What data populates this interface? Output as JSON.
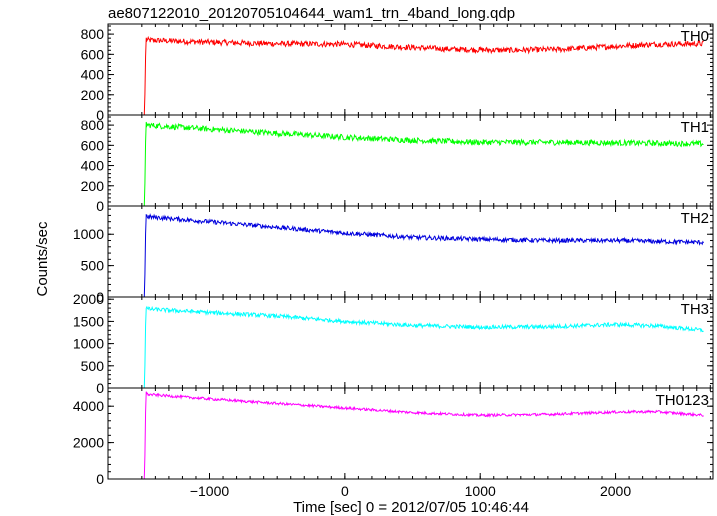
{
  "title": "ae807122010_20120705104644_wam1_trn_4band_long.qdp",
  "xlabel": "Time [sec] 0 = 2012/07/05 10:46:44",
  "ylabel": "Counts/sec",
  "chart_data": {
    "type": "line",
    "title": "ae807122010_20120705104644_wam1_trn_4band_long.qdp",
    "xlabel": "Time [sec] 0 = 2012/07/05 10:46:44",
    "ylabel": "Counts/sec",
    "xlim": [
      -1750,
      2720
    ],
    "xticks": [
      -1000,
      0,
      1000,
      2000
    ],
    "xtick_labels": [
      "−1000",
      "0",
      "1000",
      "2000"
    ],
    "grid": false,
    "panels": [
      {
        "name": "TH0",
        "color": "#ff0000",
        "ylim": [
          0,
          900
        ],
        "yticks": [
          0,
          200,
          400,
          600,
          800
        ],
        "x": [
          -1720,
          -1500,
          -1480,
          -1470,
          -1460,
          -1000,
          -500,
          0,
          300,
          800,
          1200,
          1600,
          2000,
          2300,
          2650
        ],
        "y": [
          -5,
          -5,
          -5,
          760,
          740,
          720,
          705,
          700,
          680,
          650,
          640,
          650,
          680,
          700,
          705
        ],
        "noise": 28
      },
      {
        "name": "TH1",
        "color": "#00ff00",
        "ylim": [
          0,
          900
        ],
        "yticks": [
          0,
          200,
          400,
          600,
          800
        ],
        "x": [
          -1720,
          -1500,
          -1480,
          -1470,
          -1460,
          -1000,
          -500,
          0,
          500,
          1000,
          1500,
          2000,
          2650
        ],
        "y": [
          -5,
          -5,
          -5,
          830,
          800,
          760,
          720,
          680,
          650,
          630,
          630,
          625,
          615
        ],
        "noise": 28
      },
      {
        "name": "TH2",
        "color": "#0000dd",
        "ylim": [
          0,
          1450
        ],
        "yticks": [
          0,
          500,
          1000
        ],
        "x": [
          -1720,
          -1500,
          -1480,
          -1470,
          -1460,
          -1000,
          -500,
          0,
          500,
          1000,
          1500,
          2000,
          2650
        ],
        "y": [
          -10,
          -10,
          -10,
          1320,
          1280,
          1200,
          1110,
          1020,
          950,
          920,
          900,
          900,
          870
        ],
        "noise": 35
      },
      {
        "name": "TH3",
        "color": "#00ffff",
        "ylim": [
          0,
          2050
        ],
        "yticks": [
          0,
          500,
          1000,
          1500,
          2000
        ],
        "x": [
          -1720,
          -1500,
          -1480,
          -1470,
          -1460,
          -1000,
          -500,
          0,
          500,
          1000,
          1500,
          2000,
          2300,
          2650
        ],
        "y": [
          -10,
          -10,
          -10,
          1850,
          1780,
          1700,
          1620,
          1500,
          1410,
          1370,
          1380,
          1430,
          1400,
          1300
        ],
        "noise": 45
      },
      {
        "name": "TH0123",
        "color": "#ff00ff",
        "ylim": [
          0,
          5000
        ],
        "yticks": [
          0,
          2000,
          4000
        ],
        "x": [
          -1720,
          -1500,
          -1480,
          -1470,
          -1460,
          -1000,
          -500,
          0,
          500,
          1000,
          1500,
          2000,
          2300,
          2650
        ],
        "y": [
          -20,
          -20,
          -20,
          4800,
          4650,
          4400,
          4150,
          3900,
          3650,
          3500,
          3550,
          3680,
          3700,
          3500
        ],
        "noise": 70
      }
    ]
  }
}
